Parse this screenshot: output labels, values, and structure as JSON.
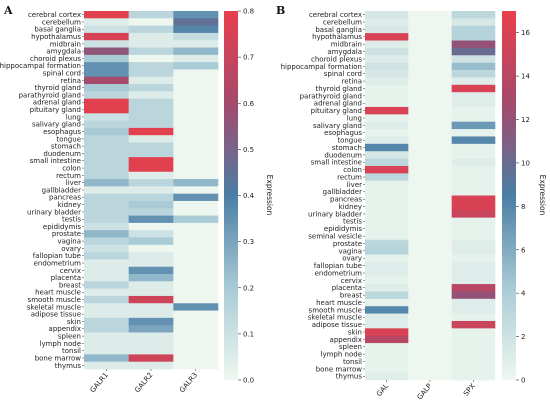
{
  "chart_data": [
    {
      "type": "heatmap",
      "panel_label": "A",
      "columns": [
        "GALR1",
        "GALR2",
        "GALR3"
      ],
      "rows": [
        "cerebral cortex",
        "cerebellum",
        "basal ganglia",
        "hypothalamus",
        "midbrain",
        "amygdala",
        "choroid plexus",
        "hippocampal formation",
        "spinal cord",
        "retina",
        "thyroid gland",
        "parathyroid gland",
        "adrenal gland",
        "pituitary gland",
        "lung",
        "salivary gland",
        "esophagus",
        "tongue",
        "stomach",
        "duodenum",
        "small intestine",
        "colon",
        "rectum",
        "liver",
        "gallbladder",
        "pancreas",
        "kidney",
        "urinary bladder",
        "testis",
        "epididymis",
        "prostate",
        "vagina",
        "ovary",
        "fallopian tube",
        "endometrium",
        "cervix",
        "placenta",
        "breast",
        "heart muscle",
        "smooth muscle",
        "skeletal muscle",
        "adipose tissue",
        "skin",
        "appendix",
        "spleen",
        "lymph node",
        "tonsil",
        "bone marrow",
        "thymus"
      ],
      "values": [
        [
          0.78,
          0.15,
          0.35
        ],
        [
          0.05,
          0.0,
          0.45
        ],
        [
          0.1,
          0.15,
          0.38
        ],
        [
          0.75,
          0.05,
          0.12
        ],
        [
          0.1,
          0.05,
          0.05
        ],
        [
          0.55,
          0.15,
          0.25
        ],
        [
          0.2,
          0.0,
          0.05
        ],
        [
          0.35,
          0.15,
          0.2
        ],
        [
          0.35,
          0.15,
          0.0
        ],
        [
          0.6,
          0.05,
          0.0
        ],
        [
          0.2,
          0.15,
          0.0
        ],
        [
          0.15,
          0.05,
          0.0
        ],
        [
          0.78,
          0.15,
          0.0
        ],
        [
          0.78,
          0.15,
          0.0
        ],
        [
          0.1,
          0.15,
          0.0
        ],
        [
          0.15,
          0.15,
          0.0
        ],
        [
          0.2,
          0.78,
          0.0
        ],
        [
          0.15,
          0.05,
          0.0
        ],
        [
          0.15,
          0.15,
          0.0
        ],
        [
          0.15,
          0.15,
          0.0
        ],
        [
          0.15,
          0.78,
          0.0
        ],
        [
          0.15,
          0.78,
          0.0
        ],
        [
          0.15,
          0.05,
          0.0
        ],
        [
          0.25,
          0.15,
          0.25
        ],
        [
          0.05,
          0.05,
          0.0
        ],
        [
          0.15,
          0.15,
          0.35
        ],
        [
          0.15,
          0.2,
          0.0
        ],
        [
          0.15,
          0.15,
          0.0
        ],
        [
          0.15,
          0.35,
          0.2
        ],
        [
          0.1,
          0.0,
          0.0
        ],
        [
          0.25,
          0.1,
          0.0
        ],
        [
          0.15,
          0.2,
          0.0
        ],
        [
          0.1,
          0.0,
          0.0
        ],
        [
          0.15,
          0.05,
          0.0
        ],
        [
          0.05,
          0.05,
          0.0
        ],
        [
          0.05,
          0.35,
          0.0
        ],
        [
          0.05,
          0.25,
          0.0
        ],
        [
          0.15,
          0.05,
          0.0
        ],
        [
          0.05,
          0.05,
          0.0
        ],
        [
          0.15,
          0.72,
          0.0
        ],
        [
          0.05,
          0.05,
          0.35
        ],
        [
          0.05,
          0.05,
          0.0
        ],
        [
          0.15,
          0.35,
          0.0
        ],
        [
          0.15,
          0.3,
          0.0
        ],
        [
          0.05,
          0.05,
          0.0
        ],
        [
          0.05,
          0.05,
          0.0
        ],
        [
          0.05,
          0.05,
          0.0
        ],
        [
          0.25,
          0.72,
          0.0
        ],
        [
          0.05,
          0.05,
          0.0
        ]
      ],
      "colorbar": {
        "label": "Expression",
        "range": [
          0,
          0.8
        ],
        "ticks": [
          0.0,
          0.1,
          0.2,
          0.3,
          0.4,
          0.5,
          0.6,
          0.7,
          0.8
        ],
        "tick_labels": [
          "0.0",
          "0.1",
          "0.2",
          "0.3",
          "0.4",
          "0.5",
          "0.6",
          "0.7",
          "0.8"
        ]
      }
    },
    {
      "type": "heatmap",
      "panel_label": "B",
      "columns": [
        "GAL",
        "GALP",
        "SPX"
      ],
      "rows": [
        "cerebral cortex",
        "cerebellum",
        "basal ganglia",
        "hypothalamus",
        "midbrain",
        "amygdala",
        "choroid plexus",
        "hippocampal formation",
        "spinal cord",
        "retina",
        "thyroid gland",
        "parathyroid gland",
        "adrenal gland",
        "pituitary gland",
        "lung",
        "salivary gland",
        "esophagus",
        "tongue",
        "stomach",
        "duodenum",
        "small intestine",
        "colon",
        "rectum",
        "liver",
        "gallbladder",
        "pancreas",
        "kidney",
        "urinary bladder",
        "testis",
        "epididymis",
        "seminal vesicle",
        "prostate",
        "vagina",
        "ovary",
        "fallopian tube",
        "endometrium",
        "cervix",
        "placenta",
        "breast",
        "heart muscle",
        "smooth muscle",
        "skeletal muscle",
        "adipose tissue",
        "skin",
        "appendix",
        "spleen",
        "lymph node",
        "tonsil",
        "bone marrow",
        "thymus"
      ],
      "values": [
        [
          1.5,
          0.0,
          3.0
        ],
        [
          1.0,
          0.0,
          1.5
        ],
        [
          1.5,
          0.0,
          3.5
        ],
        [
          16.0,
          0.0,
          3.5
        ],
        [
          1.0,
          0.0,
          12.0
        ],
        [
          2.0,
          0.0,
          10.0
        ],
        [
          1.0,
          0.0,
          2.0
        ],
        [
          2.0,
          0.0,
          5.0
        ],
        [
          1.5,
          0.0,
          3.0
        ],
        [
          1.0,
          0.0,
          1.0
        ],
        [
          0.5,
          0.0,
          16.0
        ],
        [
          0.5,
          0.0,
          1.0
        ],
        [
          0.5,
          0.0,
          1.0
        ],
        [
          16.0,
          0.0,
          0.5
        ],
        [
          0.5,
          0.0,
          0.5
        ],
        [
          1.0,
          0.0,
          7.0
        ],
        [
          0.5,
          0.0,
          0.5
        ],
        [
          1.0,
          0.0,
          8.0
        ],
        [
          8.0,
          0.0,
          0.5
        ],
        [
          1.5,
          0.0,
          0.5
        ],
        [
          3.0,
          0.0,
          1.0
        ],
        [
          16.0,
          0.0,
          0.5
        ],
        [
          3.0,
          0.0,
          0.5
        ],
        [
          0.5,
          0.0,
          0.5
        ],
        [
          0.5,
          0.0,
          0.5
        ],
        [
          0.5,
          0.0,
          16.0
        ],
        [
          0.5,
          0.0,
          16.0
        ],
        [
          0.5,
          0.0,
          15.0
        ],
        [
          0.5,
          0.0,
          0.5
        ],
        [
          0.5,
          0.0,
          0.5
        ],
        [
          0.5,
          0.0,
          0.5
        ],
        [
          3.0,
          0.0,
          1.0
        ],
        [
          3.5,
          0.0,
          1.0
        ],
        [
          0.5,
          0.0,
          0.5
        ],
        [
          1.0,
          0.0,
          1.0
        ],
        [
          1.0,
          0.0,
          1.0
        ],
        [
          0.5,
          0.0,
          1.0
        ],
        [
          1.0,
          0.0,
          14.0
        ],
        [
          3.0,
          0.0,
          12.0
        ],
        [
          0.5,
          0.0,
          1.0
        ],
        [
          8.0,
          0.0,
          1.0
        ],
        [
          1.0,
          0.0,
          0.5
        ],
        [
          1.0,
          0.0,
          15.0
        ],
        [
          16.0,
          0.0,
          0.5
        ],
        [
          14.0,
          0.0,
          0.5
        ],
        [
          0.5,
          0.0,
          0.5
        ],
        [
          0.5,
          0.0,
          0.5
        ],
        [
          0.5,
          0.0,
          0.5
        ],
        [
          0.5,
          0.0,
          0.5
        ],
        [
          1.0,
          0.0,
          0.5
        ]
      ],
      "colorbar": {
        "label": "Expression",
        "range": [
          0,
          17
        ],
        "ticks": [
          0,
          2,
          4,
          6,
          8,
          10,
          12,
          14,
          16
        ],
        "tick_labels": [
          "0",
          "2",
          "4",
          "6",
          "8",
          "10",
          "12",
          "14",
          "16"
        ]
      }
    }
  ]
}
